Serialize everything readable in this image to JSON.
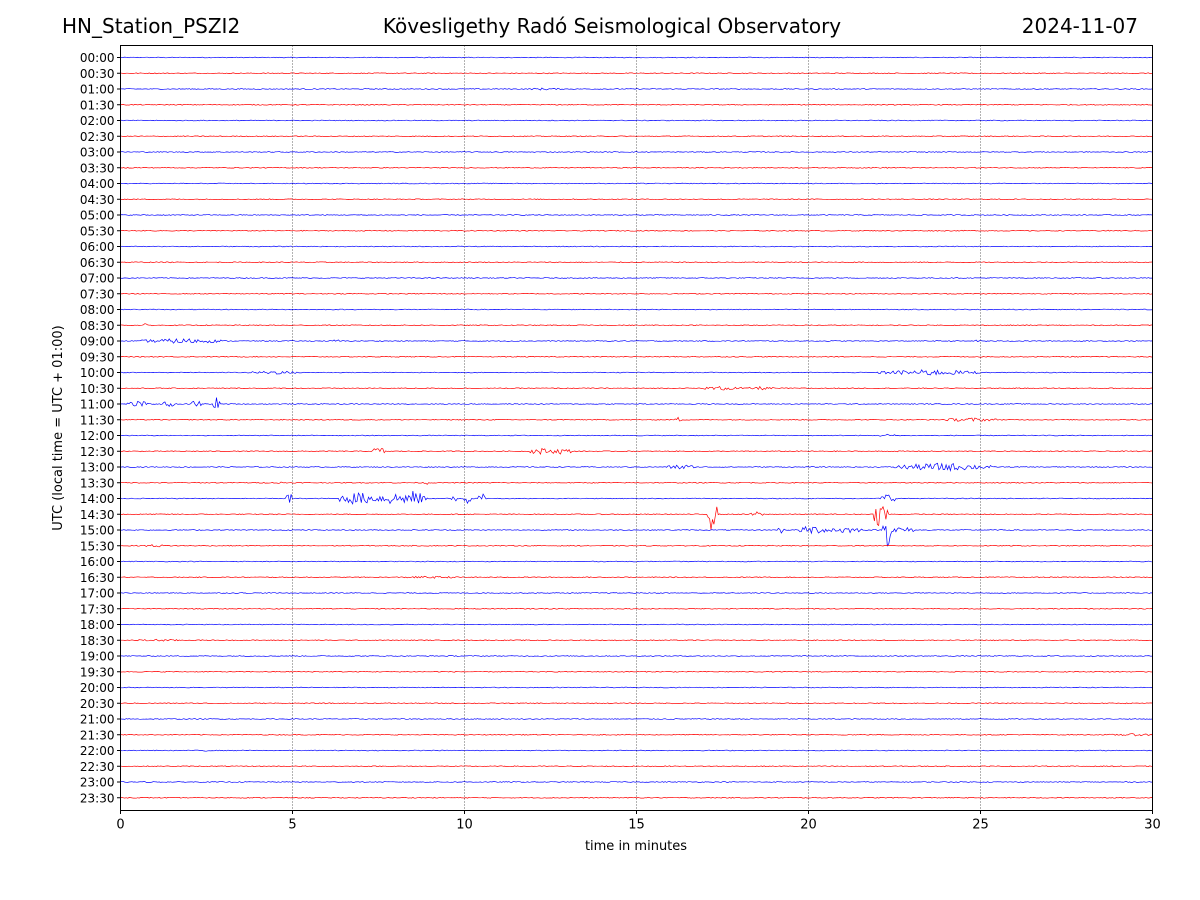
{
  "header": {
    "station": "HN_Station_PSZI2",
    "title": "Kövesligethy Radó Seismological Observatory",
    "date": "2024-11-07"
  },
  "chart_data": {
    "type": "line",
    "title": "Kövesligethy Radó Seismological Observatory",
    "xlabel": "time in minutes",
    "ylabel": "UTC (local time = UTC + 01:00)",
    "xlim": [
      0,
      30
    ],
    "xticks": [
      0,
      5,
      10,
      15,
      20,
      25,
      30
    ],
    "grid": "vertical dotted at 5-minute intervals",
    "row_labels": [
      "00:00",
      "00:30",
      "01:00",
      "01:30",
      "02:00",
      "02:30",
      "03:00",
      "03:30",
      "04:00",
      "04:30",
      "05:00",
      "05:30",
      "06:00",
      "06:30",
      "07:00",
      "07:30",
      "08:00",
      "08:30",
      "09:00",
      "09:30",
      "10:00",
      "10:30",
      "11:00",
      "11:30",
      "12:00",
      "12:30",
      "13:00",
      "13:30",
      "14:00",
      "14:30",
      "15:00",
      "15:30",
      "16:00",
      "16:30",
      "17:00",
      "17:30",
      "18:00",
      "18:30",
      "19:00",
      "19:30",
      "20:00",
      "20:30",
      "21:00",
      "21:30",
      "22:00",
      "22:30",
      "23:00",
      "23:30"
    ],
    "trace_colors": [
      "#0000ff",
      "#ff0000"
    ],
    "events": [
      {
        "row": "01:00",
        "t": 12.3,
        "amp": 0.2,
        "dur": 0.5
      },
      {
        "row": "01:00",
        "t": 15.8,
        "amp": 0.15,
        "dur": 0.1
      },
      {
        "row": "03:30",
        "t": 22.2,
        "amp": 0.1,
        "dur": 1.2
      },
      {
        "row": "05:30",
        "t": 28.8,
        "amp": 0.1,
        "dur": 0.4
      },
      {
        "row": "08:30",
        "t": 0.7,
        "amp": 0.3,
        "dur": 0.1
      },
      {
        "row": "09:00",
        "t": 1.8,
        "amp": 0.45,
        "dur": 1.2
      },
      {
        "row": "09:00",
        "t": 6.3,
        "amp": 0.4,
        "dur": 0.1
      },
      {
        "row": "09:00",
        "t": 25.0,
        "amp": 0.25,
        "dur": 0.2
      },
      {
        "row": "10:00",
        "t": 4.5,
        "amp": 0.3,
        "dur": 0.8
      },
      {
        "row": "10:00",
        "t": 23.5,
        "amp": 0.5,
        "dur": 1.5
      },
      {
        "row": "10:30",
        "t": 17.5,
        "amp": 0.35,
        "dur": 0.6
      },
      {
        "row": "10:30",
        "t": 18.6,
        "amp": 0.3,
        "dur": 0.4
      },
      {
        "row": "11:00",
        "t": 0.5,
        "amp": 0.6,
        "dur": 0.3
      },
      {
        "row": "11:00",
        "t": 1.4,
        "amp": 0.6,
        "dur": 0.2
      },
      {
        "row": "11:00",
        "t": 2.2,
        "amp": 0.8,
        "dur": 0.15
      },
      {
        "row": "11:00",
        "t": 2.8,
        "amp": 1.2,
        "dur": 0.1
      },
      {
        "row": "11:30",
        "t": 16.2,
        "amp": 0.5,
        "dur": 0.1
      },
      {
        "row": "11:30",
        "t": 24.7,
        "amp": 0.35,
        "dur": 0.8
      },
      {
        "row": "12:00",
        "t": 22.3,
        "amp": 0.25,
        "dur": 0.3
      },
      {
        "row": "12:30",
        "t": 7.5,
        "amp": 0.8,
        "dur": 0.2
      },
      {
        "row": "12:30",
        "t": 12.2,
        "amp": 0.6,
        "dur": 0.3
      },
      {
        "row": "12:30",
        "t": 12.8,
        "amp": 0.5,
        "dur": 0.4
      },
      {
        "row": "13:00",
        "t": 16.3,
        "amp": 0.5,
        "dur": 0.4
      },
      {
        "row": "13:00",
        "t": 23.9,
        "amp": 0.7,
        "dur": 1.4
      },
      {
        "row": "13:30",
        "t": 4.6,
        "amp": 0.3,
        "dur": 0.1
      },
      {
        "row": "13:30",
        "t": 8.9,
        "amp": 0.3,
        "dur": 0.1
      },
      {
        "row": "14:00",
        "t": 4.9,
        "amp": 1.2,
        "dur": 0.1
      },
      {
        "row": "14:00",
        "t": 6.9,
        "amp": 1.1,
        "dur": 0.6
      },
      {
        "row": "14:00",
        "t": 7.9,
        "amp": 1.1,
        "dur": 0.5
      },
      {
        "row": "14:00",
        "t": 8.5,
        "amp": 1.3,
        "dur": 0.4
      },
      {
        "row": "14:00",
        "t": 9.7,
        "amp": 1.3,
        "dur": 0.1
      },
      {
        "row": "14:00",
        "t": 10.1,
        "amp": 1.2,
        "dur": 0.1
      },
      {
        "row": "14:00",
        "t": 10.5,
        "amp": 1.0,
        "dur": 0.1
      },
      {
        "row": "14:00",
        "t": 22.3,
        "amp": 1.0,
        "dur": 0.2
      },
      {
        "row": "14:30",
        "t": 17.2,
        "amp": 3.0,
        "dur": 0.15
      },
      {
        "row": "14:30",
        "t": 18.5,
        "amp": 0.5,
        "dur": 0.2
      },
      {
        "row": "14:30",
        "t": 22.1,
        "amp": 2.5,
        "dur": 0.2
      },
      {
        "row": "15:00",
        "t": 19.2,
        "amp": 0.6,
        "dur": 0.1
      },
      {
        "row": "15:00",
        "t": 20.1,
        "amp": 0.8,
        "dur": 0.4
      },
      {
        "row": "15:00",
        "t": 21.0,
        "amp": 0.6,
        "dur": 0.6
      },
      {
        "row": "15:00",
        "t": 22.3,
        "amp": 2.8,
        "dur": 0.15
      },
      {
        "row": "15:00",
        "t": 22.7,
        "amp": 0.6,
        "dur": 0.4
      },
      {
        "row": "15:30",
        "t": 1.0,
        "amp": 0.25,
        "dur": 0.4
      },
      {
        "row": "16:30",
        "t": 9.0,
        "amp": 0.2,
        "dur": 1.0
      },
      {
        "row": "18:30",
        "t": 1.1,
        "amp": 0.2,
        "dur": 0.8
      },
      {
        "row": "21:30",
        "t": 29.5,
        "amp": 0.2,
        "dur": 0.9
      },
      {
        "row": "22:00",
        "t": 2.5,
        "amp": 0.2,
        "dur": 0.1
      }
    ]
  }
}
